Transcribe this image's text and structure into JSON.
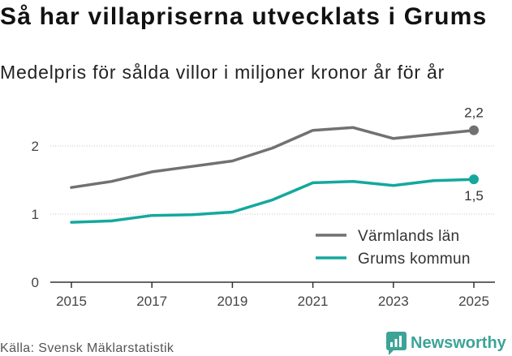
{
  "chart_data": {
    "type": "line",
    "title": "Så har villapriserna utvecklats i Grums",
    "subtitle": "Medelpris för sålda villor i miljoner kronor år för år",
    "x": [
      2015,
      2016,
      2017,
      2018,
      2019,
      2020,
      2021,
      2022,
      2023,
      2024,
      2025
    ],
    "xlim": [
      2015,
      2025
    ],
    "ylim": [
      0,
      2.5
    ],
    "xticks": [
      2015,
      2017,
      2019,
      2021,
      2023,
      2025
    ],
    "yticks": [
      0,
      1,
      2
    ],
    "grid": true,
    "legend_position": "bottom-right",
    "series": [
      {
        "name": "Värmlands län",
        "color": "#717171",
        "values": [
          1.39,
          1.48,
          1.62,
          1.7,
          1.78,
          1.97,
          2.23,
          2.27,
          2.11,
          2.17,
          2.23
        ],
        "end_label": "2,2"
      },
      {
        "name": "Grums kommun",
        "color": "#14a89d",
        "values": [
          0.88,
          0.9,
          0.98,
          0.99,
          1.03,
          1.21,
          1.46,
          1.48,
          1.42,
          1.49,
          1.51
        ],
        "end_label": "1,5"
      }
    ]
  },
  "footer": {
    "source": "Källa: Svensk Mäklarstatistik",
    "brand": "Newsworthy",
    "brand_color": "#3da396",
    "brand_icon": "newsworthy-logo-icon"
  }
}
